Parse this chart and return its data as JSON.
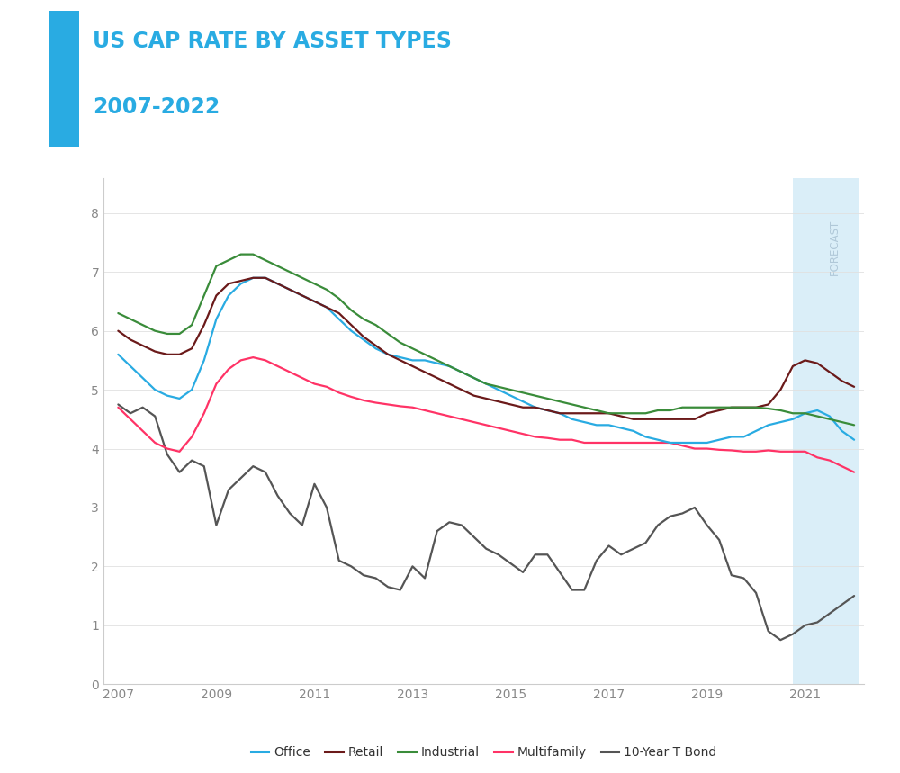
{
  "title_line1": "US CAP RATE BY ASSET TYPES",
  "title_line2": "2007-2022",
  "title_color": "#29abe2",
  "background_color": "#ffffff",
  "forecast_start": 2020.75,
  "forecast_end": 2022.1,
  "forecast_color": "#daeef8",
  "forecast_label": "FORECAST",
  "xlim": [
    2006.7,
    2022.2
  ],
  "ylim": [
    0,
    8.6
  ],
  "yticks": [
    0,
    1,
    2,
    3,
    4,
    5,
    6,
    7,
    8
  ],
  "xticks": [
    2007,
    2009,
    2011,
    2013,
    2015,
    2017,
    2019,
    2021
  ],
  "series": {
    "Office": {
      "color": "#29abe2",
      "x": [
        2007.0,
        2007.25,
        2007.5,
        2007.75,
        2008.0,
        2008.25,
        2008.5,
        2008.75,
        2009.0,
        2009.25,
        2009.5,
        2009.75,
        2010.0,
        2010.25,
        2010.5,
        2010.75,
        2011.0,
        2011.25,
        2011.5,
        2011.75,
        2012.0,
        2012.25,
        2012.5,
        2012.75,
        2013.0,
        2013.25,
        2013.5,
        2013.75,
        2014.0,
        2014.25,
        2014.5,
        2014.75,
        2015.0,
        2015.25,
        2015.5,
        2015.75,
        2016.0,
        2016.25,
        2016.5,
        2016.75,
        2017.0,
        2017.25,
        2017.5,
        2017.75,
        2018.0,
        2018.25,
        2018.5,
        2018.75,
        2019.0,
        2019.25,
        2019.5,
        2019.75,
        2020.0,
        2020.25,
        2020.5,
        2020.75,
        2021.0,
        2021.25,
        2021.5,
        2021.75,
        2022.0
      ],
      "y": [
        5.6,
        5.4,
        5.2,
        5.0,
        4.9,
        4.85,
        5.0,
        5.5,
        6.2,
        6.6,
        6.8,
        6.9,
        6.9,
        6.8,
        6.7,
        6.6,
        6.5,
        6.4,
        6.2,
        6.0,
        5.85,
        5.7,
        5.6,
        5.55,
        5.5,
        5.5,
        5.45,
        5.4,
        5.3,
        5.2,
        5.1,
        5.0,
        4.9,
        4.8,
        4.7,
        4.65,
        4.6,
        4.5,
        4.45,
        4.4,
        4.4,
        4.35,
        4.3,
        4.2,
        4.15,
        4.1,
        4.1,
        4.1,
        4.1,
        4.15,
        4.2,
        4.2,
        4.3,
        4.4,
        4.45,
        4.5,
        4.6,
        4.65,
        4.55,
        4.3,
        4.15
      ]
    },
    "Retail": {
      "color": "#6b1a1a",
      "x": [
        2007.0,
        2007.25,
        2007.5,
        2007.75,
        2008.0,
        2008.25,
        2008.5,
        2008.75,
        2009.0,
        2009.25,
        2009.5,
        2009.75,
        2010.0,
        2010.25,
        2010.5,
        2010.75,
        2011.0,
        2011.25,
        2011.5,
        2011.75,
        2012.0,
        2012.25,
        2012.5,
        2012.75,
        2013.0,
        2013.25,
        2013.5,
        2013.75,
        2014.0,
        2014.25,
        2014.5,
        2014.75,
        2015.0,
        2015.25,
        2015.5,
        2015.75,
        2016.0,
        2016.25,
        2016.5,
        2016.75,
        2017.0,
        2017.25,
        2017.5,
        2017.75,
        2018.0,
        2018.25,
        2018.5,
        2018.75,
        2019.0,
        2019.25,
        2019.5,
        2019.75,
        2020.0,
        2020.25,
        2020.5,
        2020.75,
        2021.0,
        2021.25,
        2021.5,
        2021.75,
        2022.0
      ],
      "y": [
        6.0,
        5.85,
        5.75,
        5.65,
        5.6,
        5.6,
        5.7,
        6.1,
        6.6,
        6.8,
        6.85,
        6.9,
        6.9,
        6.8,
        6.7,
        6.6,
        6.5,
        6.4,
        6.3,
        6.1,
        5.9,
        5.75,
        5.6,
        5.5,
        5.4,
        5.3,
        5.2,
        5.1,
        5.0,
        4.9,
        4.85,
        4.8,
        4.75,
        4.7,
        4.7,
        4.65,
        4.6,
        4.6,
        4.6,
        4.6,
        4.6,
        4.55,
        4.5,
        4.5,
        4.5,
        4.5,
        4.5,
        4.5,
        4.6,
        4.65,
        4.7,
        4.7,
        4.7,
        4.75,
        5.0,
        5.4,
        5.5,
        5.45,
        5.3,
        5.15,
        5.05
      ]
    },
    "Industrial": {
      "color": "#3a8c3a",
      "x": [
        2007.0,
        2007.25,
        2007.5,
        2007.75,
        2008.0,
        2008.25,
        2008.5,
        2008.75,
        2009.0,
        2009.25,
        2009.5,
        2009.75,
        2010.0,
        2010.25,
        2010.5,
        2010.75,
        2011.0,
        2011.25,
        2011.5,
        2011.75,
        2012.0,
        2012.25,
        2012.5,
        2012.75,
        2013.0,
        2013.25,
        2013.5,
        2013.75,
        2014.0,
        2014.25,
        2014.5,
        2014.75,
        2015.0,
        2015.25,
        2015.5,
        2015.75,
        2016.0,
        2016.25,
        2016.5,
        2016.75,
        2017.0,
        2017.25,
        2017.5,
        2017.75,
        2018.0,
        2018.25,
        2018.5,
        2018.75,
        2019.0,
        2019.25,
        2019.5,
        2019.75,
        2020.0,
        2020.25,
        2020.5,
        2020.75,
        2021.0,
        2021.25,
        2021.5,
        2021.75,
        2022.0
      ],
      "y": [
        6.3,
        6.2,
        6.1,
        6.0,
        5.95,
        5.95,
        6.1,
        6.6,
        7.1,
        7.2,
        7.3,
        7.3,
        7.2,
        7.1,
        7.0,
        6.9,
        6.8,
        6.7,
        6.55,
        6.35,
        6.2,
        6.1,
        5.95,
        5.8,
        5.7,
        5.6,
        5.5,
        5.4,
        5.3,
        5.2,
        5.1,
        5.05,
        5.0,
        4.95,
        4.9,
        4.85,
        4.8,
        4.75,
        4.7,
        4.65,
        4.6,
        4.6,
        4.6,
        4.6,
        4.65,
        4.65,
        4.7,
        4.7,
        4.7,
        4.7,
        4.7,
        4.7,
        4.7,
        4.68,
        4.65,
        4.6,
        4.6,
        4.55,
        4.5,
        4.45,
        4.4
      ]
    },
    "Multifamily": {
      "color": "#ff3366",
      "x": [
        2007.0,
        2007.25,
        2007.5,
        2007.75,
        2008.0,
        2008.25,
        2008.5,
        2008.75,
        2009.0,
        2009.25,
        2009.5,
        2009.75,
        2010.0,
        2010.25,
        2010.5,
        2010.75,
        2011.0,
        2011.25,
        2011.5,
        2011.75,
        2012.0,
        2012.25,
        2012.5,
        2012.75,
        2013.0,
        2013.25,
        2013.5,
        2013.75,
        2014.0,
        2014.25,
        2014.5,
        2014.75,
        2015.0,
        2015.25,
        2015.5,
        2015.75,
        2016.0,
        2016.25,
        2016.5,
        2016.75,
        2017.0,
        2017.25,
        2017.5,
        2017.75,
        2018.0,
        2018.25,
        2018.5,
        2018.75,
        2019.0,
        2019.25,
        2019.5,
        2019.75,
        2020.0,
        2020.25,
        2020.5,
        2020.75,
        2021.0,
        2021.25,
        2021.5,
        2021.75,
        2022.0
      ],
      "y": [
        4.7,
        4.5,
        4.3,
        4.1,
        4.0,
        3.95,
        4.2,
        4.6,
        5.1,
        5.35,
        5.5,
        5.55,
        5.5,
        5.4,
        5.3,
        5.2,
        5.1,
        5.05,
        4.95,
        4.88,
        4.82,
        4.78,
        4.75,
        4.72,
        4.7,
        4.65,
        4.6,
        4.55,
        4.5,
        4.45,
        4.4,
        4.35,
        4.3,
        4.25,
        4.2,
        4.18,
        4.15,
        4.15,
        4.1,
        4.1,
        4.1,
        4.1,
        4.1,
        4.1,
        4.1,
        4.1,
        4.05,
        4.0,
        4.0,
        3.98,
        3.97,
        3.95,
        3.95,
        3.97,
        3.95,
        3.95,
        3.95,
        3.85,
        3.8,
        3.7,
        3.6
      ]
    },
    "10-Year T Bond": {
      "color": "#555555",
      "x": [
        2007.0,
        2007.25,
        2007.5,
        2007.75,
        2008.0,
        2008.25,
        2008.5,
        2008.75,
        2009.0,
        2009.25,
        2009.5,
        2009.75,
        2010.0,
        2010.25,
        2010.5,
        2010.75,
        2011.0,
        2011.25,
        2011.5,
        2011.75,
        2012.0,
        2012.25,
        2012.5,
        2012.75,
        2013.0,
        2013.25,
        2013.5,
        2013.75,
        2014.0,
        2014.25,
        2014.5,
        2014.75,
        2015.0,
        2015.25,
        2015.5,
        2015.75,
        2016.0,
        2016.25,
        2016.5,
        2016.75,
        2017.0,
        2017.25,
        2017.5,
        2017.75,
        2018.0,
        2018.25,
        2018.5,
        2018.75,
        2019.0,
        2019.25,
        2019.5,
        2019.75,
        2020.0,
        2020.25,
        2020.5,
        2020.75,
        2021.0,
        2021.25,
        2021.5,
        2021.75,
        2022.0
      ],
      "y": [
        4.75,
        4.6,
        4.7,
        4.55,
        3.9,
        3.6,
        3.8,
        3.7,
        2.7,
        3.3,
        3.5,
        3.7,
        3.6,
        3.2,
        2.9,
        2.7,
        3.4,
        3.0,
        2.1,
        2.0,
        1.85,
        1.8,
        1.65,
        1.6,
        2.0,
        1.8,
        2.6,
        2.75,
        2.7,
        2.5,
        2.3,
        2.2,
        2.05,
        1.9,
        2.2,
        2.2,
        1.9,
        1.6,
        1.6,
        2.1,
        2.35,
        2.2,
        2.3,
        2.4,
        2.7,
        2.85,
        2.9,
        3.0,
        2.7,
        2.45,
        1.85,
        1.8,
        1.55,
        0.9,
        0.75,
        0.85,
        1.0,
        1.05,
        1.2,
        1.35,
        1.5
      ]
    }
  },
  "legend_order": [
    "Office",
    "Retail",
    "Industrial",
    "Multifamily",
    "10-Year T Bond"
  ],
  "blue_rect_color": "#29abe2",
  "tick_color": "#888888",
  "grid_color": "#e0e0e0",
  "spine_color": "#cccccc"
}
